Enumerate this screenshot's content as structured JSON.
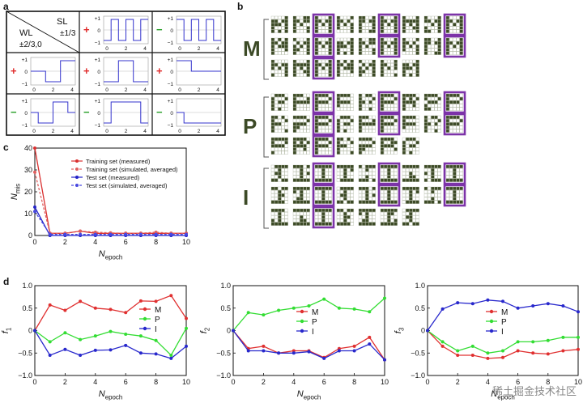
{
  "colors": {
    "measured_red": "#d93030",
    "sim_red": "#e06060",
    "measured_blue": "#2323c8",
    "sim_blue": "#4848e0",
    "line_m": "#e03030",
    "line_p": "#33dd33",
    "line_i": "#2828cc",
    "pixel_dark": "#3c4a26",
    "pixel_light": "#ffffff",
    "highlight": "#7c33a8",
    "plus_red": "#e02b2b",
    "minus_green": "#2aa02a"
  },
  "panel_a": {
    "label": "a",
    "header": {
      "sl": "SL",
      "sl_val": "±1/3",
      "wl": "WL",
      "wl_val": "±2/3,0"
    },
    "tick_plus1": "+1",
    "tick_zero": "0",
    "tick_minus1": "−1",
    "x_ticks": [
      "0",
      "2",
      "4"
    ],
    "cells": [
      {
        "row": 0,
        "col": 1,
        "sign": "+",
        "wave": [
          -1,
          1,
          -1,
          1,
          -1,
          1
        ]
      },
      {
        "row": 0,
        "col": 2,
        "sign": "−",
        "wave": [
          1,
          -1,
          1,
          -1,
          1,
          -1
        ]
      },
      {
        "row": 1,
        "col": 0,
        "sign": "+",
        "wave": [
          0,
          0,
          -1,
          -1,
          1,
          1
        ]
      },
      {
        "row": 1,
        "col": 1,
        "sign": "+",
        "wave": [
          -1,
          -1,
          1,
          1,
          -1,
          -1
        ]
      },
      {
        "row": 1,
        "col": 2,
        "sign": "+",
        "wave": [
          1,
          1,
          0,
          0,
          0,
          0
        ]
      },
      {
        "row": 2,
        "col": 0,
        "sign": "−",
        "wave": [
          0,
          -1,
          -1,
          1,
          1,
          0
        ]
      },
      {
        "row": 2,
        "col": 1,
        "sign": "−",
        "wave": [
          -1,
          1,
          1,
          1,
          1,
          -1
        ]
      },
      {
        "row": 2,
        "col": 2,
        "sign": "−",
        "wave": [
          0,
          -1,
          -1,
          -1,
          -1,
          -1
        ]
      }
    ]
  },
  "panel_b": {
    "label": "b",
    "groups": [
      {
        "letter": "M",
        "rows": [
          {
            "n": 9,
            "highlights": [
              2,
              5,
              8
            ]
          },
          {
            "n": 9,
            "highlights": [
              2,
              5,
              8
            ]
          },
          {
            "n": 7,
            "highlights": [
              2
            ]
          }
        ]
      },
      {
        "letter": "P",
        "rows": [
          {
            "n": 9,
            "highlights": [
              2,
              5,
              8
            ]
          },
          {
            "n": 9,
            "highlights": [
              2,
              5,
              8
            ]
          },
          {
            "n": 7,
            "highlights": [
              2
            ]
          }
        ]
      },
      {
        "letter": "I",
        "rows": [
          {
            "n": 9,
            "highlights": [
              2,
              5,
              8
            ]
          },
          {
            "n": 9,
            "highlights": [
              2,
              5,
              8
            ]
          },
          {
            "n": 7,
            "highlights": [
              2
            ]
          }
        ]
      }
    ]
  },
  "chart_data": [
    {
      "id": "c",
      "type": "line",
      "panel_label": "c",
      "ylabel": "N",
      "ylabel_sub": "mis",
      "xlabel": "N",
      "xlabel_sub": "epoch",
      "xlim": [
        0,
        10
      ],
      "ylim": [
        0,
        40
      ],
      "x_ticks": [
        "0",
        "2",
        "4",
        "6",
        "8",
        "10"
      ],
      "y_ticks": [
        "0",
        "10",
        "20",
        "30",
        "40"
      ],
      "x": [
        0,
        1,
        2,
        3,
        4,
        5,
        6,
        7,
        8,
        9,
        10
      ],
      "legend": [
        "Training set (measured)",
        "Training set (simulated, averaged)",
        "Test set (measured)",
        "Test set (simulated, averaged)"
      ],
      "series": [
        {
          "name": "Training set (measured)",
          "color": "#d93030",
          "dashed": false,
          "values": [
            40,
            1,
            1,
            2,
            1,
            1,
            1,
            1,
            1,
            1,
            1
          ]
        },
        {
          "name": "Training set (simulated, averaged)",
          "color": "#e06060",
          "dashed": true,
          "values": [
            29,
            1,
            1,
            2,
            1.5,
            1.2,
            1,
            1,
            1.5,
            1,
            1
          ]
        },
        {
          "name": "Test set (measured)",
          "color": "#2323c8",
          "dashed": false,
          "values": [
            13,
            0,
            0,
            0,
            0,
            0,
            0,
            0,
            0,
            0,
            0
          ]
        },
        {
          "name": "Test set (simulated, averaged)",
          "color": "#4848e0",
          "dashed": true,
          "values": [
            11,
            0.5,
            0.5,
            0.5,
            0.5,
            0.5,
            0.5,
            0.5,
            0.5,
            0.5,
            0.5
          ]
        }
      ]
    },
    {
      "id": "d1",
      "type": "line",
      "panel_label": "d",
      "ylabel": "f",
      "ylabel_sub": "1",
      "xlabel": "N",
      "xlabel_sub": "epoch",
      "xlim": [
        0,
        10
      ],
      "ylim": [
        -1,
        1
      ],
      "x_ticks": [
        "0",
        "2",
        "4",
        "6",
        "8",
        "10"
      ],
      "y_ticks": [
        "1.0",
        "0.5",
        "0",
        "−0.5",
        "−1.0"
      ],
      "x": [
        0,
        1,
        2,
        3,
        4,
        5,
        6,
        7,
        8,
        9,
        10
      ],
      "legend_pos": "right",
      "series": [
        {
          "name": "M",
          "color": "#e03030",
          "values": [
            0,
            0.57,
            0.45,
            0.65,
            0.5,
            0.47,
            0.4,
            0.66,
            0.65,
            0.78,
            0.27
          ]
        },
        {
          "name": "P",
          "color": "#33dd33",
          "values": [
            0,
            -0.25,
            -0.05,
            -0.2,
            -0.12,
            -0.02,
            -0.08,
            -0.12,
            -0.22,
            -0.55,
            0.05
          ]
        },
        {
          "name": "I",
          "color": "#2828cc",
          "values": [
            0,
            -0.55,
            -0.42,
            -0.55,
            -0.44,
            -0.43,
            -0.33,
            -0.5,
            -0.52,
            -0.62,
            -0.35
          ]
        }
      ]
    },
    {
      "id": "d2",
      "type": "line",
      "panel_label": "",
      "ylabel": "f",
      "ylabel_sub": "2",
      "xlabel": "N",
      "xlabel_sub": "epoch",
      "xlim": [
        0,
        10
      ],
      "ylim": [
        -1,
        1
      ],
      "x_ticks": [
        "0",
        "2",
        "4",
        "6",
        "8",
        "10"
      ],
      "y_ticks": [
        "1.0",
        "0.5",
        "0",
        "−0.5",
        "−1.0"
      ],
      "x": [
        0,
        1,
        2,
        3,
        4,
        5,
        6,
        7,
        8,
        9,
        10
      ],
      "legend_pos": "center",
      "series": [
        {
          "name": "M",
          "color": "#e03030",
          "values": [
            0,
            -0.4,
            -0.35,
            -0.5,
            -0.45,
            -0.45,
            -0.6,
            -0.4,
            -0.35,
            -0.15,
            -0.65
          ]
        },
        {
          "name": "P",
          "color": "#33dd33",
          "values": [
            0,
            0.4,
            0.35,
            0.45,
            0.5,
            0.55,
            0.7,
            0.5,
            0.48,
            0.42,
            0.72
          ]
        },
        {
          "name": "I",
          "color": "#2828cc",
          "values": [
            0,
            -0.45,
            -0.45,
            -0.5,
            -0.5,
            -0.47,
            -0.62,
            -0.45,
            -0.45,
            -0.3,
            -0.65
          ]
        }
      ]
    },
    {
      "id": "d3",
      "type": "line",
      "panel_label": "",
      "ylabel": "f",
      "ylabel_sub": "3",
      "xlabel": "N",
      "xlabel_sub": "epoch",
      "xlim": [
        0,
        10
      ],
      "ylim": [
        -1,
        1
      ],
      "x_ticks": [
        "0",
        "2",
        "4",
        "6",
        "8",
        "10"
      ],
      "y_ticks": [
        "1.0",
        "0.5",
        "0",
        "−0.5",
        "−1.0"
      ],
      "x": [
        0,
        1,
        2,
        3,
        4,
        5,
        6,
        7,
        8,
        9,
        10
      ],
      "legend_pos": "center",
      "series": [
        {
          "name": "M",
          "color": "#e03030",
          "values": [
            0,
            -0.35,
            -0.55,
            -0.55,
            -0.62,
            -0.6,
            -0.45,
            -0.5,
            -0.52,
            -0.45,
            -0.42
          ]
        },
        {
          "name": "P",
          "color": "#33dd33",
          "values": [
            0,
            -0.25,
            -0.45,
            -0.35,
            -0.5,
            -0.45,
            -0.25,
            -0.25,
            -0.22,
            -0.15,
            -0.15
          ]
        },
        {
          "name": "I",
          "color": "#2828cc",
          "values": [
            0,
            0.48,
            0.62,
            0.6,
            0.68,
            0.65,
            0.5,
            0.55,
            0.6,
            0.55,
            0.42
          ]
        }
      ]
    }
  ],
  "watermark": "稀土掘金技术社区"
}
